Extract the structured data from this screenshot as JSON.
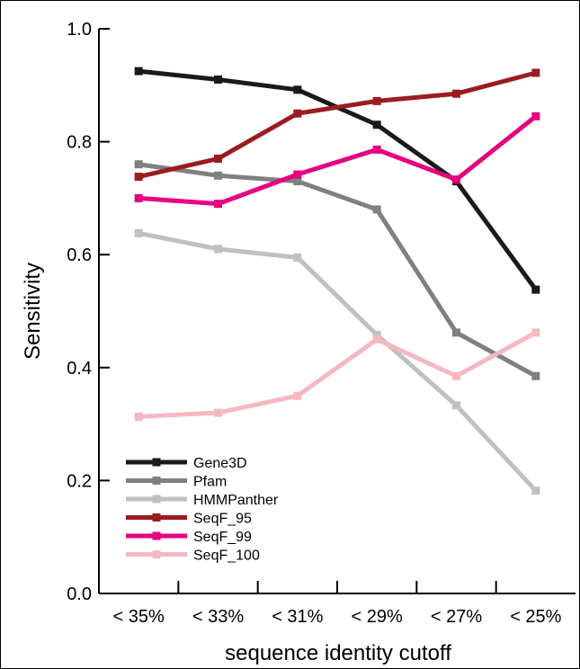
{
  "chart_data": {
    "type": "line",
    "title": "",
    "xlabel": "sequence identity cutoff",
    "ylabel": "Sensitivity",
    "categories": [
      "< 35%",
      "< 33%",
      "< 31%",
      "< 29%",
      "< 27%",
      "< 25%"
    ],
    "ylim": [
      0.0,
      1.0
    ],
    "yticks": [
      "0.0",
      "0.2",
      "0.4",
      "0.6",
      "0.8",
      "1.0"
    ],
    "grid": false,
    "legend_position": "bottom-left",
    "series": [
      {
        "name": "Gene3D",
        "color": "#1a1a1a",
        "values": [
          0.925,
          0.91,
          0.892,
          0.83,
          0.73,
          0.538
        ]
      },
      {
        "name": "Pfam",
        "color": "#808080",
        "values": [
          0.76,
          0.74,
          0.73,
          0.68,
          0.462,
          0.385
        ]
      },
      {
        "name": "HMMPanther",
        "color": "#c0c0c0",
        "values": [
          0.638,
          0.61,
          0.595,
          0.458,
          0.333,
          0.182
        ]
      },
      {
        "name": "SeqF_95",
        "color": "#9b1c20",
        "values": [
          0.738,
          0.77,
          0.85,
          0.872,
          0.885,
          0.922
        ]
      },
      {
        "name": "SeqF_99",
        "color": "#e6007e",
        "values": [
          0.7,
          0.69,
          0.742,
          0.786,
          0.733,
          0.845
        ]
      },
      {
        "name": "SeqF_100",
        "color": "#f5b8c0",
        "values": [
          0.313,
          0.32,
          0.35,
          0.45,
          0.385,
          0.462
        ]
      }
    ]
  }
}
